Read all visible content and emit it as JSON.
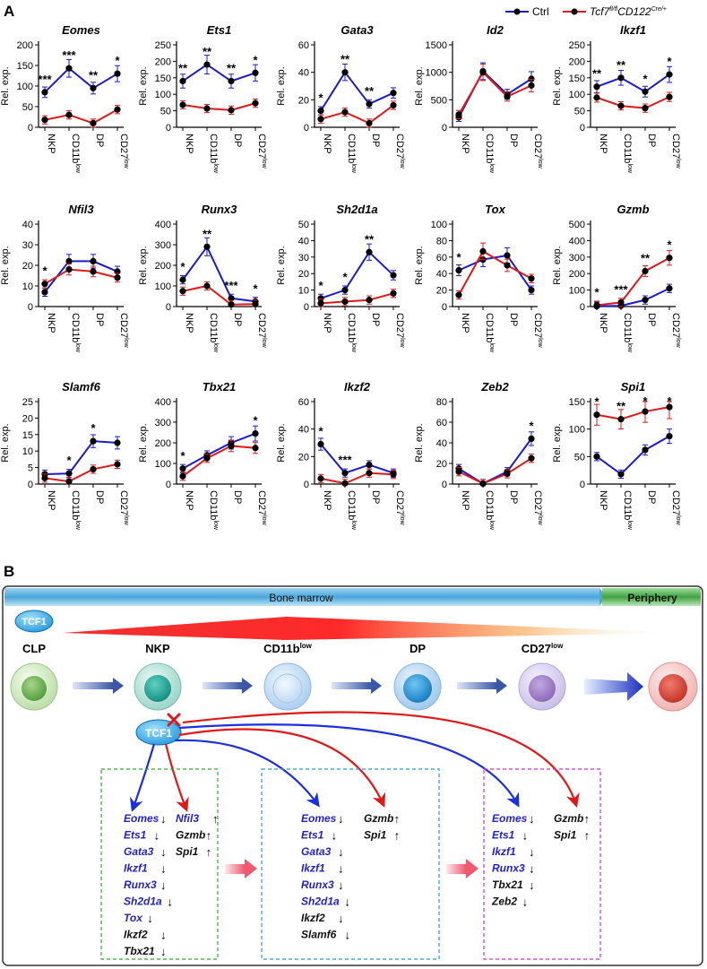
{
  "panel_a_label": "A",
  "panel_b_label": "B",
  "legend": {
    "ctrl": "Ctrl",
    "ko": "Tcf7",
    "ko_sup": "fl/fl",
    "ko_2": "CD122",
    "ko_2_sup": "Cre/+"
  },
  "colors": {
    "ctrl": "#1a1ad0",
    "ko": "#e01818",
    "blue_gene": "#2222cc",
    "black_gene": "#111111"
  },
  "ylabel": "Rel. exp.",
  "categories": [
    {
      "base": "NKP",
      "sup": ""
    },
    {
      "base": "CD11b",
      "sup": "low"
    },
    {
      "base": "DP",
      "sup": ""
    },
    {
      "base": "CD27",
      "sup": "low"
    }
  ],
  "chart_data": [
    {
      "type": "line",
      "title": "Eomes",
      "ylim": [
        0,
        200
      ],
      "ticks": [
        0,
        50,
        100,
        150,
        200
      ],
      "series": [
        {
          "name": "Ctrl",
          "values": [
            85,
            143,
            95,
            130
          ]
        },
        {
          "name": "Tcf7 fl/fl CD122 Cre/+",
          "values": [
            18,
            30,
            10,
            43
          ]
        }
      ],
      "annotations": [
        "***",
        "***",
        "**",
        "*"
      ]
    },
    {
      "type": "line",
      "title": "Ets1",
      "ylim": [
        0,
        250
      ],
      "ticks": [
        0,
        50,
        100,
        150,
        200,
        250
      ],
      "series": [
        {
          "name": "Ctrl",
          "values": [
            140,
            190,
            140,
            165
          ]
        },
        {
          "name": "Tcf7 fl/fl CD122 Cre/+",
          "values": [
            68,
            57,
            52,
            73
          ]
        }
      ],
      "annotations": [
        "**",
        "**",
        "**",
        "*"
      ]
    },
    {
      "type": "line",
      "title": "Gata3",
      "ylim": [
        0,
        60
      ],
      "ticks": [
        0,
        20,
        40,
        60
      ],
      "series": [
        {
          "name": "Ctrl",
          "values": [
            12,
            40,
            17,
            25
          ]
        },
        {
          "name": "Tcf7 fl/fl CD122 Cre/+",
          "values": [
            6,
            11,
            3,
            16
          ]
        }
      ],
      "annotations": [
        "*",
        "**",
        "**",
        ""
      ]
    },
    {
      "type": "line",
      "title": "Id2",
      "ylim": [
        0,
        1500
      ],
      "ticks": [
        0,
        500,
        1000,
        1500
      ],
      "series": [
        {
          "name": "Ctrl",
          "values": [
            180,
            1020,
            600,
            880
          ]
        },
        {
          "name": "Tcf7 fl/fl CD122 Cre/+",
          "values": [
            230,
            1000,
            560,
            760
          ]
        }
      ],
      "annotations": [
        "",
        "",
        "",
        ""
      ]
    },
    {
      "type": "line",
      "title": "Ikzf1",
      "ylim": [
        0,
        250
      ],
      "ticks": [
        0,
        50,
        100,
        150,
        200,
        250
      ],
      "series": [
        {
          "name": "Ctrl",
          "values": [
            123,
            150,
            108,
            160
          ]
        },
        {
          "name": "Tcf7 fl/fl CD122 Cre/+",
          "values": [
            90,
            65,
            58,
            92
          ]
        }
      ],
      "annotations": [
        "**",
        "**",
        "*",
        "*"
      ]
    },
    {
      "type": "line",
      "title": "Nfil3",
      "ylim": [
        0,
        40
      ],
      "ticks": [
        0,
        10,
        20,
        30,
        40
      ],
      "series": [
        {
          "name": "Ctrl",
          "values": [
            7,
            22,
            22,
            17
          ]
        },
        {
          "name": "Tcf7 fl/fl CD122 Cre/+",
          "values": [
            11,
            18,
            17,
            14
          ]
        }
      ],
      "annotations": [
        "*",
        "",
        "",
        ""
      ]
    },
    {
      "type": "line",
      "title": "Runx3",
      "ylim": [
        0,
        400
      ],
      "ticks": [
        0,
        100,
        200,
        300,
        400
      ],
      "series": [
        {
          "name": "Ctrl",
          "values": [
            130,
            290,
            40,
            25
          ]
        },
        {
          "name": "Tcf7 fl/fl CD122 Cre/+",
          "values": [
            75,
            100,
            10,
            12
          ]
        }
      ],
      "annotations": [
        "*",
        "**",
        "***",
        "*"
      ]
    },
    {
      "type": "line",
      "title": "Sh2d1a",
      "ylim": [
        0,
        50
      ],
      "ticks": [
        0,
        10,
        20,
        30,
        40,
        50
      ],
      "series": [
        {
          "name": "Ctrl",
          "values": [
            5,
            10,
            33,
            19
          ]
        },
        {
          "name": "Tcf7 fl/fl CD122 Cre/+",
          "values": [
            2,
            3,
            4,
            8
          ]
        }
      ],
      "annotations": [
        "*",
        "*",
        "**",
        ""
      ]
    },
    {
      "type": "line",
      "title": "Tox",
      "ylim": [
        0,
        100
      ],
      "ticks": [
        0,
        20,
        40,
        60,
        80,
        100
      ],
      "series": [
        {
          "name": "Ctrl",
          "values": [
            44,
            57,
            62,
            20
          ]
        },
        {
          "name": "Tcf7 fl/fl CD122 Cre/+",
          "values": [
            14,
            67,
            50,
            34
          ]
        }
      ],
      "annotations": [
        "*",
        "",
        "",
        ""
      ]
    },
    {
      "type": "line",
      "title": "Gzmb",
      "ylim": [
        0,
        500
      ],
      "ticks": [
        0,
        100,
        200,
        300,
        400,
        500
      ],
      "series": [
        {
          "name": "Ctrl",
          "values": [
            2,
            5,
            40,
            110
          ]
        },
        {
          "name": "Tcf7 fl/fl CD122 Cre/+",
          "values": [
            8,
            25,
            215,
            295
          ]
        }
      ],
      "annotations": [
        "*",
        "***",
        "**",
        "*"
      ]
    },
    {
      "type": "line",
      "title": "Slamf6",
      "ylim": [
        0,
        25
      ],
      "ticks": [
        0,
        5,
        10,
        15,
        20,
        25
      ],
      "series": [
        {
          "name": "Ctrl",
          "values": [
            3,
            3.2,
            13,
            12.5
          ]
        },
        {
          "name": "Tcf7 fl/fl CD122 Cre/+",
          "values": [
            1.8,
            0.8,
            4.5,
            6
          ]
        }
      ],
      "annotations": [
        "",
        "*",
        "*",
        ""
      ]
    },
    {
      "type": "line",
      "title": "Tbx21",
      "ylim": [
        0,
        400
      ],
      "ticks": [
        0,
        100,
        200,
        300,
        400
      ],
      "series": [
        {
          "name": "Ctrl",
          "values": [
            75,
            140,
            200,
            245
          ]
        },
        {
          "name": "Tcf7 fl/fl CD122 Cre/+",
          "values": [
            38,
            125,
            185,
            175
          ]
        }
      ],
      "annotations": [
        "*",
        "",
        "",
        "*"
      ]
    },
    {
      "type": "line",
      "title": "Ikzf2",
      "ylim": [
        0,
        60
      ],
      "ticks": [
        0,
        20,
        40,
        60
      ],
      "series": [
        {
          "name": "Ctrl",
          "values": [
            29,
            8,
            14,
            8
          ]
        },
        {
          "name": "Tcf7 fl/fl CD122 Cre/+",
          "values": [
            4,
            0.5,
            8,
            7
          ]
        }
      ],
      "annotations": [
        "*",
        "***",
        "",
        ""
      ]
    },
    {
      "type": "line",
      "title": "Zeb2",
      "ylim": [
        0,
        80
      ],
      "ticks": [
        0,
        20,
        40,
        60,
        80
      ],
      "series": [
        {
          "name": "Ctrl",
          "values": [
            15,
            0.5,
            12,
            44
          ]
        },
        {
          "name": "Tcf7 fl/fl CD122 Cre/+",
          "values": [
            12,
            0.5,
            10,
            25
          ]
        }
      ],
      "annotations": [
        "",
        "",
        "",
        "*"
      ]
    },
    {
      "type": "line",
      "title": "Spi1",
      "ylim": [
        0,
        150
      ],
      "ticks": [
        0,
        50,
        100,
        150
      ],
      "series": [
        {
          "name": "Ctrl",
          "values": [
            50,
            18,
            62,
            87
          ]
        },
        {
          "name": "Tcf7 fl/fl CD122 Cre/+",
          "values": [
            126,
            118,
            132,
            140
          ]
        }
      ],
      "annotations": [
        "*",
        "**",
        "*",
        "*"
      ]
    }
  ],
  "panel_b": {
    "bone_marrow": "Bone marrow",
    "periphery": "Periphery",
    "tcf1": "TCF1",
    "stages": [
      {
        "base": "CLP",
        "sup": ""
      },
      {
        "base": "NKP",
        "sup": ""
      },
      {
        "base": "CD11b",
        "sup": "low"
      },
      {
        "base": "DP",
        "sup": ""
      },
      {
        "base": "CD27",
        "sup": "low"
      }
    ],
    "up_arrow": "↑",
    "down_arrow": "↓",
    "boxes": [
      {
        "down": [
          {
            "name": "Eomes",
            "color": "blue"
          },
          {
            "name": "Ets1",
            "color": "blue"
          },
          {
            "name": "Gata3",
            "color": "blue"
          },
          {
            "name": "Ikzf1",
            "color": "blue"
          },
          {
            "name": "Runx3",
            "color": "blue"
          },
          {
            "name": "Sh2d1a",
            "color": "blue"
          },
          {
            "name": "Tox",
            "color": "blue"
          },
          {
            "name": "Ikzf2",
            "color": "black"
          },
          {
            "name": "Tbx21",
            "color": "black"
          }
        ],
        "up": [
          {
            "name": "Nfil3",
            "color": "blue"
          },
          {
            "name": "Gzmb",
            "color": "black"
          },
          {
            "name": "Spi1",
            "color": "black"
          }
        ]
      },
      {
        "down": [
          {
            "name": "Eomes",
            "color": "blue"
          },
          {
            "name": "Ets1",
            "color": "blue"
          },
          {
            "name": "Gata3",
            "color": "blue"
          },
          {
            "name": "Ikzf1",
            "color": "blue"
          },
          {
            "name": "Runx3",
            "color": "blue"
          },
          {
            "name": "Sh2d1a",
            "color": "blue"
          },
          {
            "name": "Ikzf2",
            "color": "black"
          },
          {
            "name": "Slamf6",
            "color": "black"
          }
        ],
        "up": [
          {
            "name": "Gzmb",
            "color": "black"
          },
          {
            "name": "Spi1",
            "color": "black"
          }
        ]
      },
      {
        "down": [
          {
            "name": "Eomes",
            "color": "blue"
          },
          {
            "name": "Ets1",
            "color": "blue"
          },
          {
            "name": "Ikzf1",
            "color": "blue"
          },
          {
            "name": "Runx3",
            "color": "blue"
          },
          {
            "name": "Tbx21",
            "color": "black"
          },
          {
            "name": "Zeb2",
            "color": "black"
          }
        ],
        "up": [
          {
            "name": "Gzmb",
            "color": "black"
          },
          {
            "name": "Spi1",
            "color": "black"
          }
        ]
      }
    ]
  }
}
